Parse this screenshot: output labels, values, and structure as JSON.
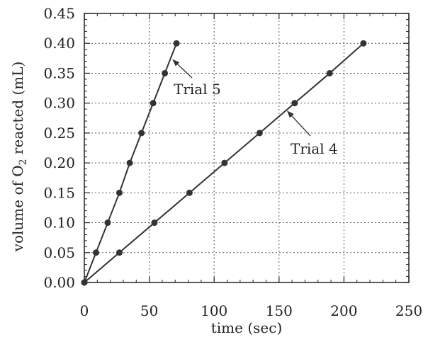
{
  "chart_data": {
    "type": "line",
    "title": "",
    "xlabel": "time (sec)",
    "ylabel_parts": [
      "volume of O",
      "2",
      " reacted (mL)"
    ],
    "xlim": [
      0,
      250
    ],
    "ylim": [
      0,
      0.45
    ],
    "x_ticks": [
      0,
      50,
      100,
      150,
      200,
      250
    ],
    "x_tick_labels": [
      "0",
      "50",
      "100",
      "150",
      "200",
      "250"
    ],
    "y_ticks": [
      0,
      0.05,
      0.1,
      0.15,
      0.2,
      0.25,
      0.3,
      0.35,
      0.4,
      0.45
    ],
    "y_tick_labels": [
      "0.00",
      "0.05",
      "0.10",
      "0.15",
      "0.20",
      "0.25",
      "0.30",
      "0.35",
      "0.40",
      "0.45"
    ],
    "grid": true,
    "legend": "none",
    "series": [
      {
        "name": "Trial 5",
        "x": [
          0,
          9,
          18,
          27,
          35,
          44,
          53,
          62,
          71
        ],
        "y": [
          0,
          0.05,
          0.1,
          0.15,
          0.2,
          0.25,
          0.3,
          0.35,
          0.4
        ]
      },
      {
        "name": "Trial 4",
        "x": [
          0,
          27,
          54,
          81,
          108,
          135,
          162,
          189,
          215
        ],
        "y": [
          0,
          0.05,
          0.1,
          0.15,
          0.2,
          0.25,
          0.3,
          0.35,
          0.4
        ]
      }
    ],
    "annotations": [
      {
        "text": "Trial 5",
        "series": 0,
        "point_x": 67,
        "point_y": 0.375
      },
      {
        "text": "Trial 4",
        "series": 1,
        "point_x": 155,
        "point_y": 0.29
      }
    ],
    "colors": {
      "line": "#333333",
      "marker": "#333333",
      "grid": "#555555",
      "axis": "#222222"
    }
  }
}
